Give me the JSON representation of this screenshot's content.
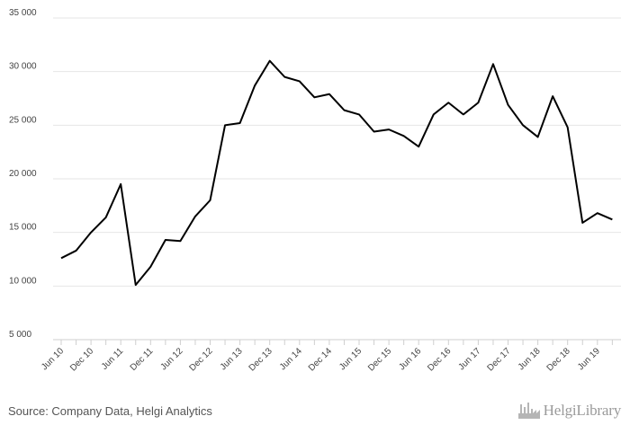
{
  "chart_data": {
    "type": "line",
    "x": [
      "Jun 10",
      "Sep 10",
      "Dec 10",
      "Mar 11",
      "Jun 11",
      "Sep 11",
      "Dec 11",
      "Mar 12",
      "Jun 12",
      "Sep 12",
      "Dec 12",
      "Mar 13",
      "Jun 13",
      "Sep 13",
      "Dec 13",
      "Mar 14",
      "Jun 14",
      "Sep 14",
      "Dec 14",
      "Mar 15",
      "Jun 15",
      "Sep 15",
      "Dec 15",
      "Mar 16",
      "Jun 16",
      "Sep 16",
      "Dec 16",
      "Mar 17",
      "Jun 17",
      "Sep 17",
      "Dec 17",
      "Mar 18",
      "Jun 18",
      "Sep 18",
      "Dec 18",
      "Mar 19",
      "Jun 19",
      "Sep 19"
    ],
    "x_tick_labels": [
      "Jun 10",
      "Dec 10",
      "Jun 11",
      "Dec 11",
      "Jun 12",
      "Dec 12",
      "Jun 13",
      "Dec 13",
      "Jun 14",
      "Dec 14",
      "Jun 15",
      "Dec 15",
      "Jun 16",
      "Dec 16",
      "Jun 17",
      "Dec 17",
      "Jun 18",
      "Dec 18",
      "Jun 19"
    ],
    "series": [
      {
        "values": [
          12600,
          13300,
          15000,
          16400,
          19500,
          10100,
          11800,
          14300,
          14200,
          16500,
          18000,
          25000,
          25200,
          28700,
          31000,
          29500,
          29100,
          27600,
          27900,
          26400,
          26000,
          24400,
          24600,
          24000,
          23000,
          26000,
          27100,
          26000,
          27100,
          30700,
          26900,
          25000,
          23900,
          27700,
          24800,
          15900,
          16800,
          16200
        ]
      }
    ],
    "title": "",
    "xlabel": "",
    "ylabel": "",
    "ylim": [
      5000,
      35000
    ],
    "y_ticks": [
      "5 000",
      "10 000",
      "15 000",
      "20 000",
      "25 000",
      "30 000",
      "35 000"
    ],
    "grid": true,
    "line_color": "#000000",
    "grid_color": "#e6e6e6"
  },
  "footer": {
    "source": "Source: Company Data, Helgi Analytics",
    "brand_name": "HelgiLibrary",
    "brand_icon": "factory-icon"
  }
}
